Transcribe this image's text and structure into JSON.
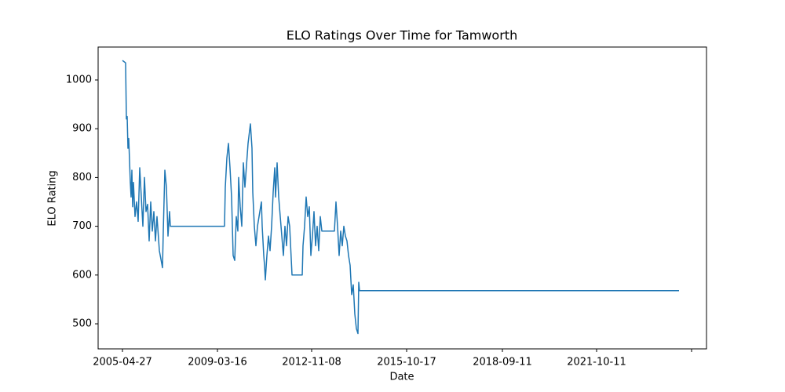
{
  "chart_data": {
    "type": "line",
    "title": "ELO Ratings Over Time for Tamworth",
    "xlabel": "Date",
    "ylabel": "ELO Rating",
    "xlim": [
      -31,
      744
    ],
    "ylim": [
      448.6,
      1067.5
    ],
    "xticks": [
      {
        "value": 0,
        "label": "2005-04-27"
      },
      {
        "value": 121,
        "label": "2009-03-16"
      },
      {
        "value": 241,
        "label": "2012-11-08"
      },
      {
        "value": 362,
        "label": "2015-10-17"
      },
      {
        "value": 484,
        "label": "2018-09-11"
      },
      {
        "value": 604,
        "label": "2021-10-11"
      },
      {
        "value": 725,
        "label": null
      }
    ],
    "yticks": [
      500,
      600,
      700,
      800,
      900,
      1000
    ],
    "series": [
      {
        "name": "Tamworth",
        "color": "#1f77b4",
        "x": [
          0,
          4,
          5,
          6,
          7,
          8,
          10,
          11,
          12,
          13,
          14,
          16,
          18,
          20,
          22,
          24,
          26,
          28,
          30,
          32,
          34,
          36,
          38,
          40,
          42,
          44,
          47,
          51,
          52,
          54,
          56,
          58,
          60,
          61,
          130,
          131,
          133,
          135,
          137,
          139,
          140,
          141,
          143,
          145,
          147,
          148,
          150,
          152,
          154,
          156,
          160,
          163,
          165,
          166,
          168,
          170,
          172,
          175,
          177,
          178,
          180,
          181,
          182,
          184,
          186,
          188,
          190,
          192,
          194,
          195,
          197,
          199,
          201,
          203,
          205,
          207,
          209,
          211,
          213,
          216,
          218,
          229,
          230,
          232,
          234,
          236,
          238,
          240,
          242,
          244,
          246,
          248,
          250,
          252,
          254,
          256,
          270,
          272,
          274,
          276,
          278,
          280,
          282,
          284,
          286,
          288,
          290,
          292,
          294,
          296,
          298,
          300,
          301,
          302,
          709
        ],
        "values": [
          1040,
          1035,
          920,
          925,
          860,
          880,
          790,
          760,
          815,
          740,
          790,
          720,
          750,
          710,
          820,
          760,
          700,
          800,
          730,
          745,
          670,
          750,
          690,
          730,
          670,
          720,
          650,
          615,
          690,
          815,
          780,
          680,
          730,
          700,
          700,
          780,
          840,
          870,
          820,
          760,
          700,
          640,
          630,
          720,
          690,
          800,
          740,
          700,
          830,
          780,
          870,
          910,
          860,
          770,
          700,
          660,
          700,
          730,
          750,
          700,
          640,
          620,
          590,
          640,
          680,
          650,
          700,
          770,
          820,
          760,
          830,
          760,
          720,
          680,
          640,
          700,
          660,
          720,
          700,
          600,
          600,
          600,
          660,
          700,
          760,
          720,
          740,
          640,
          680,
          730,
          660,
          700,
          650,
          720,
          690,
          690,
          690,
          750,
          700,
          640,
          690,
          660,
          700,
          680,
          670,
          640,
          620,
          560,
          580,
          520,
          490,
          480,
          585,
          568,
          568
        ]
      }
    ]
  }
}
